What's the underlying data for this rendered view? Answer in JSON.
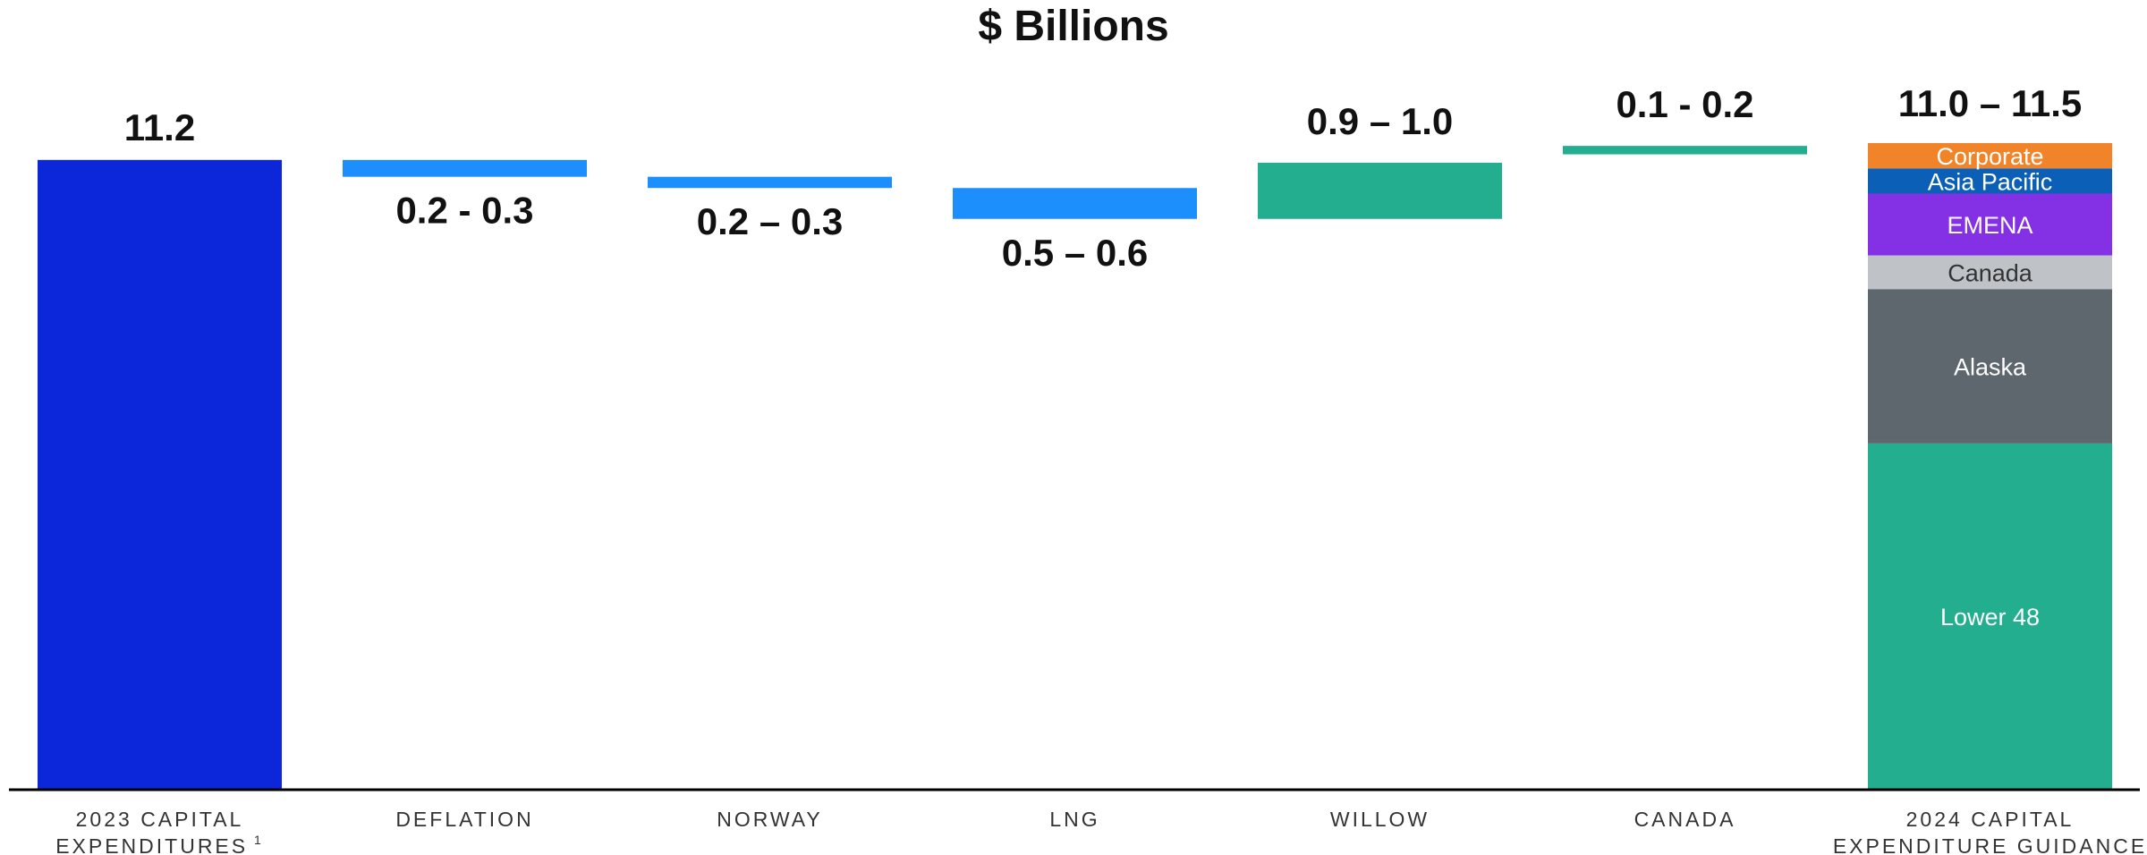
{
  "title": "$ Billions",
  "colors": {
    "start": "#0c27d9",
    "decrease": "#1c8ffc",
    "increase": "#22ae8f",
    "axis": "#000000"
  },
  "chart_data": {
    "type": "waterfall",
    "title": "$ Billions",
    "ylim": [
      0,
      11.5
    ],
    "bars": [
      {
        "kind": "total",
        "category": [
          "2023 CAPITAL",
          "EXPENDITURES"
        ],
        "superscript": "1",
        "value": 11.2,
        "label": "11.2",
        "color": "start"
      },
      {
        "kind": "delta",
        "category": [
          "DEFLATION"
        ],
        "low": 10.9,
        "high": 11.2,
        "label": "0.2 - 0.3",
        "label_pos": "below",
        "color": "decrease"
      },
      {
        "kind": "delta",
        "category": [
          "NORWAY"
        ],
        "low": 10.7,
        "high": 10.9,
        "label": "0.2 – 0.3",
        "label_pos": "below",
        "color": "decrease"
      },
      {
        "kind": "delta",
        "category": [
          "LNG"
        ],
        "low": 10.15,
        "high": 10.7,
        "label": "0.5 – 0.6",
        "label_pos": "below",
        "color": "decrease"
      },
      {
        "kind": "delta",
        "category": [
          "WILLOW"
        ],
        "low": 10.15,
        "high": 11.15,
        "label": "0.9 – 1.0",
        "label_pos": "above",
        "color": "increase"
      },
      {
        "kind": "delta",
        "category": [
          "CANADA"
        ],
        "low": 11.3,
        "high": 11.45,
        "label": "0.1 - 0.2",
        "label_pos": "above",
        "color": "increase"
      },
      {
        "kind": "stack",
        "category": [
          "2024 CAPITAL",
          "EXPENDITURE GUIDANCE"
        ],
        "label": "11.0 – 11.5",
        "segments": [
          {
            "name": "Lower 48",
            "value": 6.15,
            "color": "#22ae8f"
          },
          {
            "name": "Alaska",
            "value": 2.75,
            "color": "#5e666e"
          },
          {
            "name": "Canada",
            "value": 0.6,
            "color": "#bfc3c8",
            "dark": true
          },
          {
            "name": "EMENA",
            "value": 1.1,
            "color": "#8431e6"
          },
          {
            "name": "Asia Pacific",
            "value": 0.45,
            "color": "#0b5fb6"
          },
          {
            "name": "Corporate",
            "value": 0.45,
            "color": "#f18328"
          }
        ]
      }
    ]
  }
}
